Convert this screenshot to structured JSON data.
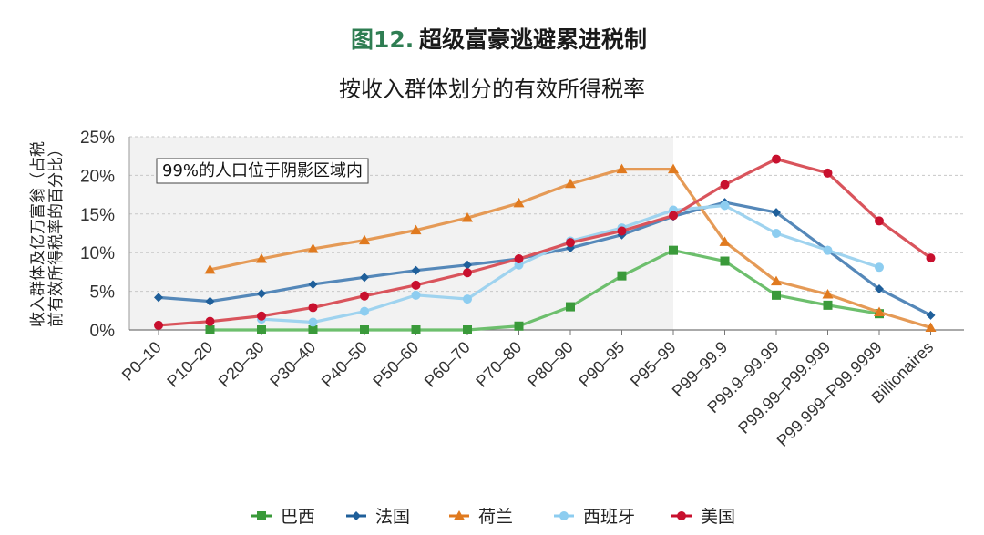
{
  "header": {
    "figure_label": "图12.",
    "title": "超级富豪逃避累进税制",
    "subtitle": "按收入群体划分的有效所得税率"
  },
  "chart_data": {
    "type": "line",
    "ylabel_line1": "收入群体及亿万富翁（占税",
    "ylabel_line2": "前有效所得税率的百分比）",
    "ylim": [
      0,
      25
    ],
    "yticks": [
      "0%",
      "5%",
      "10%",
      "15%",
      "20%",
      "25%"
    ],
    "categories": [
      "P0–10",
      "P10–20",
      "P20–30",
      "P30–40",
      "P40–50",
      "P50–60",
      "P60–70",
      "P70–80",
      "P80–90",
      "P90–95",
      "P95–99",
      "P99–99.9",
      "P99.9–99.99",
      "P99.99–P99.999",
      "P99.999–P99.9999",
      "Billionaires"
    ],
    "shaded_region": {
      "from_category": "P0–10",
      "to_category": "P95–99",
      "annotation": "99%的人口位于阴影区域内"
    },
    "grid": true,
    "legend_position": "bottom",
    "series": [
      {
        "name": "巴西",
        "color": "#6dbf6d",
        "marker_color": "#3a9a3a",
        "marker": "square",
        "values": [
          null,
          0,
          0,
          0,
          0,
          0,
          0,
          0.5,
          3,
          7,
          10.3,
          8.9,
          4.5,
          3.2,
          2.1,
          null
        ]
      },
      {
        "name": "法国",
        "color": "#5588b9",
        "marker_color": "#1f5f9a",
        "marker": "diamond",
        "values": [
          4.2,
          3.7,
          4.7,
          5.9,
          6.8,
          7.7,
          8.4,
          9.2,
          10.6,
          12.3,
          14.7,
          16.5,
          15.2,
          10.3,
          5.3,
          1.9
        ]
      },
      {
        "name": "荷兰",
        "color": "#e59a56",
        "marker_color": "#e07a1f",
        "marker": "triangle",
        "values": [
          null,
          7.8,
          9.2,
          10.5,
          11.6,
          12.9,
          14.5,
          16.4,
          18.9,
          20.8,
          20.8,
          11.4,
          6.3,
          4.6,
          2.3,
          0.3
        ]
      },
      {
        "name": "西班牙",
        "color": "#9fd3ef",
        "marker_color": "#8dcdf0",
        "marker": "circle",
        "values": [
          null,
          null,
          1.4,
          1.0,
          2.4,
          4.5,
          4.0,
          8.4,
          11.5,
          13.2,
          15.5,
          16.1,
          12.5,
          10.3,
          8.1,
          null
        ]
      },
      {
        "name": "美国",
        "color": "#d9545c",
        "marker_color": "#c8102e",
        "marker": "circle",
        "values": [
          0.6,
          1.1,
          1.8,
          2.9,
          4.4,
          5.8,
          7.4,
          9.2,
          11.3,
          12.8,
          14.8,
          18.8,
          22.1,
          20.3,
          14.1,
          9.3
        ]
      }
    ]
  }
}
